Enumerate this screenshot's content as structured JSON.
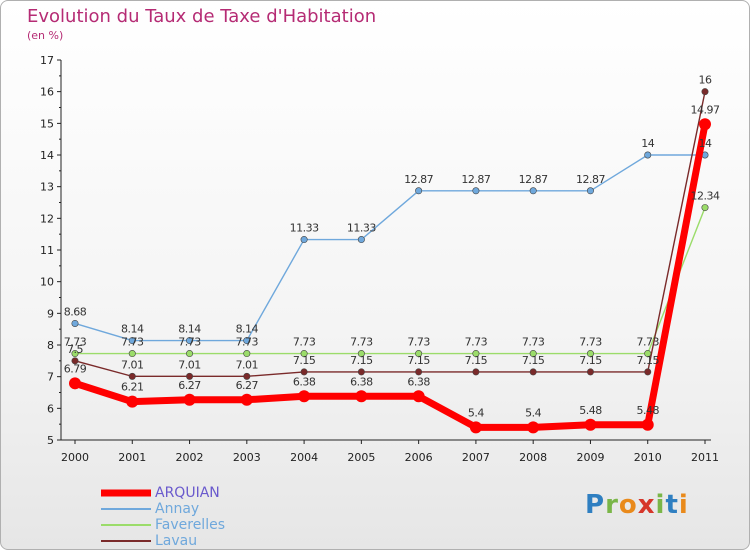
{
  "title": "Evolution du Taux de Taxe d'Habitation",
  "unit": "(en %)",
  "logo": {
    "letters": [
      "P",
      "r",
      "o",
      "x",
      "i",
      "t",
      "i"
    ],
    "colors": [
      "#2f7fc1",
      "#7ab648",
      "#e98a1b",
      "#d6362a",
      "#7ab648",
      "#2f7fc1",
      "#e98a1b"
    ]
  },
  "chart_data": {
    "type": "line",
    "x": [
      "2000",
      "2001",
      "2002",
      "2003",
      "2004",
      "2005",
      "2006",
      "2007",
      "2008",
      "2009",
      "2010",
      "2011"
    ],
    "ylim": [
      5,
      17
    ],
    "yticks": [
      "5",
      "6",
      "7",
      "8",
      "9",
      "10",
      "11",
      "12",
      "13",
      "14",
      "15",
      "16",
      "17"
    ],
    "grid": false,
    "legend_position": "bottom-left",
    "series": [
      {
        "name": "ARQUIAN",
        "color": "#ff0000",
        "values": [
          6.79,
          6.21,
          6.27,
          6.27,
          6.38,
          6.38,
          6.38,
          5.4,
          5.4,
          5.48,
          5.48,
          14.97
        ],
        "labels": [
          "6.79",
          "6.21",
          "6.27",
          "6.27",
          "6.38",
          "6.38",
          "6.38",
          "5.4",
          "5.4",
          "5.48",
          "5.48",
          "14.97"
        ]
      },
      {
        "name": "Annay",
        "color": "#6fa8dc",
        "values": [
          8.68,
          8.14,
          8.14,
          8.14,
          11.33,
          11.33,
          12.87,
          12.87,
          12.87,
          12.87,
          14,
          14
        ],
        "labels": [
          "8.68",
          "8.14",
          "8.14",
          "8.14",
          "11.33",
          "11.33",
          "12.87",
          "12.87",
          "12.87",
          "12.87",
          "14",
          "14"
        ]
      },
      {
        "name": "Faverelles",
        "color": "#9bdc6a",
        "values": [
          7.73,
          7.73,
          7.73,
          7.73,
          7.73,
          7.73,
          7.73,
          7.73,
          7.73,
          7.73,
          7.73,
          12.34
        ],
        "labels": [
          "7.73",
          "7.73",
          "7.73",
          "7.73",
          "7.73",
          "7.73",
          "7.73",
          "7.73",
          "7.73",
          "7.73",
          "7.73",
          "12.34"
        ]
      },
      {
        "name": "Lavau",
        "color": "#7a2a2a",
        "values": [
          7.5,
          7.01,
          7.01,
          7.01,
          7.15,
          7.15,
          7.15,
          7.15,
          7.15,
          7.15,
          7.15,
          16
        ],
        "labels": [
          "7.5",
          "7.01",
          "7.01",
          "7.01",
          "7.15",
          "7.15",
          "7.15",
          "7.15",
          "7.15",
          "7.15",
          "7.15",
          "16"
        ]
      }
    ]
  }
}
